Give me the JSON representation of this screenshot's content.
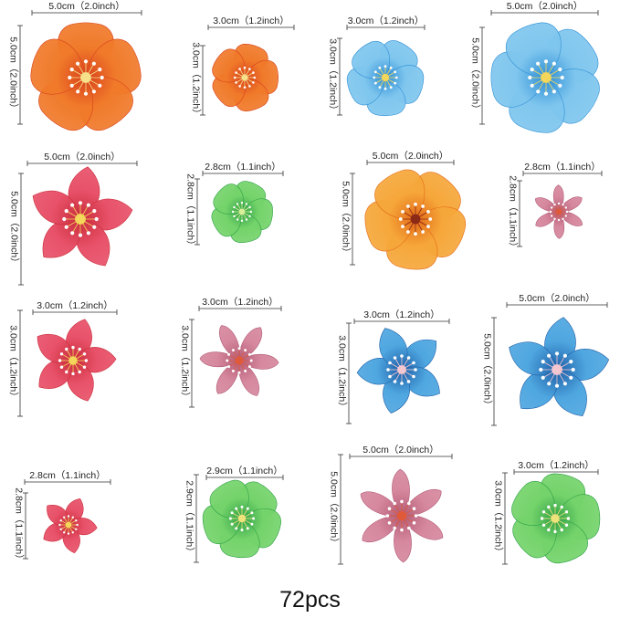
{
  "caption": "72pcs",
  "flowers": [
    {
      "label_w": "5.0cm（2.0inch）",
      "label_h": "5.0cm（2.0inch）",
      "petals": 5,
      "shape": "round",
      "c1": "#f07a2a",
      "c2": "#d9411c",
      "center": "#f6e08a"
    },
    {
      "label_w": "3.0cm（1.2inch）",
      "label_h": "3.0cm（1.2inch）",
      "petals": 5,
      "shape": "round",
      "c1": "#f07a2a",
      "c2": "#d9411c",
      "center": "#f6e08a"
    },
    {
      "label_w": "3.0cm（1.2inch）",
      "label_h": "3.0cm（1.2inch）",
      "petals": 5,
      "shape": "round",
      "c1": "#7fc6ee",
      "c2": "#2f8fd6",
      "center": "#f3d65a"
    },
    {
      "label_w": "5.0cm（2.0inch）",
      "label_h": "5.0cm（2.0inch）",
      "petals": 5,
      "shape": "round",
      "c1": "#7fc6ee",
      "c2": "#2f8fd6",
      "center": "#f3d65a"
    },
    {
      "label_w": "5.0cm（2.0inch）",
      "label_h": "5.0cm（2.0inch）",
      "petals": 5,
      "shape": "pointed",
      "c1": "#e8526a",
      "c2": "#c92b3a",
      "center": "#f3d65a"
    },
    {
      "label_w": "2.8cm（1.1inch）",
      "label_h": "2.8cm（1.1inch）",
      "petals": 5,
      "shape": "round",
      "c1": "#74d36a",
      "c2": "#2fa047",
      "center": "#d9ef9a"
    },
    {
      "label_w": "5.0cm（2.0inch）",
      "label_h": "5.0cm（2.0inch）",
      "petals": 5,
      "shape": "round",
      "c1": "#f6a73a",
      "c2": "#e26a18",
      "center": "#8b2a16"
    },
    {
      "label_w": "2.8cm（1.1inch）",
      "label_h": "2.8cm（1.1inch）",
      "petals": 6,
      "shape": "narrow",
      "c1": "#d6889e",
      "c2": "#b15a74",
      "center": "#e05a3a"
    },
    {
      "label_w": "3.0cm（1.2inch）",
      "label_h": "3.0cm（1.2inch）",
      "petals": 5,
      "shape": "pointed",
      "c1": "#e8526a",
      "c2": "#c92b3a",
      "center": "#f3d65a"
    },
    {
      "label_w": "3.0cm（1.2inch）",
      "label_h": "3.0cm（1.2inch）",
      "petals": 6,
      "shape": "narrow",
      "c1": "#d6889e",
      "c2": "#b15a74",
      "center": "#e05a3a"
    },
    {
      "label_w": "3.0cm（1.2inch）",
      "label_h": "3.0cm（1.2inch）",
      "petals": 5,
      "shape": "pointed",
      "c1": "#4fa7e0",
      "c2": "#1e5fa8",
      "center": "#f4c7d0"
    },
    {
      "label_w": "5.0cm（2.0inch）",
      "label_h": "5.0cm（2.0inch）",
      "petals": 5,
      "shape": "pointed",
      "c1": "#4fa7e0",
      "c2": "#1e5fa8",
      "center": "#f4c7d0"
    },
    {
      "label_w": "2.8cm（1.1inch）",
      "label_h": "2.8cm（1.1inch）",
      "petals": 5,
      "shape": "pointed",
      "c1": "#e8526a",
      "c2": "#c92b3a",
      "center": "#f3d65a"
    },
    {
      "label_w": "2.9cm（1.1inch）",
      "label_h": "2.9cm（1.1inch）",
      "petals": 5,
      "shape": "round",
      "c1": "#74d36a",
      "c2": "#2fa047",
      "center": "#f0e27a"
    },
    {
      "label_w": "5.0cm（2.0inch）",
      "label_h": "5.0cm（2.0inch）",
      "petals": 6,
      "shape": "narrow",
      "c1": "#d6889e",
      "c2": "#b15a74",
      "center": "#e05a3a"
    },
    {
      "label_w": "3.0cm（1.2inch）",
      "label_h": "3.0cm（1.2inch）",
      "petals": 5,
      "shape": "round",
      "c1": "#74d36a",
      "c2": "#2fa047",
      "center": "#f0e27a"
    }
  ]
}
